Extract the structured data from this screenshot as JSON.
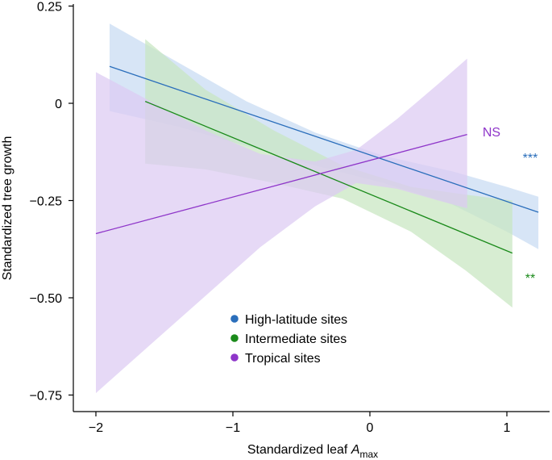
{
  "chart_data": {
    "type": "line",
    "title": "",
    "xlabel": "Standardized leaf ",
    "xlabel_italic": "A",
    "xlabel_sub": "max",
    "ylabel": "Standardized tree growth",
    "xlim": [
      -2.1,
      1.3
    ],
    "ylim": [
      -0.78,
      0.25
    ],
    "x_ticks": [
      -2,
      -1,
      0,
      1
    ],
    "x_tick_labels": [
      "−2",
      "−1",
      "0",
      "1"
    ],
    "y_ticks": [
      0.25,
      0,
      -0.25,
      -0.5,
      -0.75
    ],
    "y_tick_labels": [
      "0.25",
      "0",
      "−0.25",
      "−0.50",
      "−0.75"
    ],
    "grid": false,
    "legend_position": "lower-center",
    "series": [
      {
        "name": "High-latitude sites",
        "color": "#2a6ebb",
        "band_color": "#c7dbf3",
        "significance": "***",
        "x": [
          -1.9,
          1.23
        ],
        "y": [
          0.095,
          -0.28
        ],
        "band": {
          "x": [
            -1.9,
            -1.4,
            -0.9,
            -0.4,
            0.1,
            0.6,
            1.0,
            1.23
          ],
          "upper": [
            0.205,
            0.105,
            0.005,
            -0.075,
            -0.135,
            -0.175,
            -0.215,
            -0.24
          ],
          "lower": [
            -0.02,
            -0.06,
            -0.11,
            -0.16,
            -0.205,
            -0.26,
            -0.33,
            -0.375
          ]
        }
      },
      {
        "name": "Intermediate sites",
        "color": "#1a8a1a",
        "band_color": "#c8e6c1",
        "significance": "**",
        "x": [
          -1.64,
          1.04
        ],
        "y": [
          0.005,
          -0.385
        ],
        "band": {
          "x": [
            -1.64,
            -1.2,
            -0.7,
            -0.2,
            0.3,
            0.7,
            1.04
          ],
          "upper": [
            0.165,
            0.035,
            -0.07,
            -0.16,
            -0.215,
            -0.235,
            -0.25
          ],
          "lower": [
            -0.155,
            -0.17,
            -0.205,
            -0.245,
            -0.33,
            -0.43,
            -0.525
          ]
        }
      },
      {
        "name": "Tropical sites",
        "color": "#8e35c9",
        "band_color": "#dccbf2",
        "significance": "NS",
        "x": [
          -2.0,
          0.71
        ],
        "y": [
          -0.335,
          -0.08
        ],
        "band": {
          "x": [
            -2.0,
            -1.6,
            -1.2,
            -0.8,
            -0.4,
            -0.1,
            0.2,
            0.5,
            0.71
          ],
          "upper": [
            0.08,
            0.005,
            -0.07,
            -0.13,
            -0.15,
            -0.12,
            -0.04,
            0.05,
            0.115
          ],
          "lower": [
            -0.745,
            -0.62,
            -0.495,
            -0.37,
            -0.265,
            -0.205,
            -0.22,
            -0.25,
            -0.27
          ]
        }
      }
    ]
  },
  "legend": {
    "items": [
      {
        "label": "High-latitude sites",
        "color": "#2a6ebb"
      },
      {
        "label": "Intermediate sites",
        "color": "#1a8a1a"
      },
      {
        "label": "Tropical sites",
        "color": "#8e35c9"
      }
    ]
  }
}
